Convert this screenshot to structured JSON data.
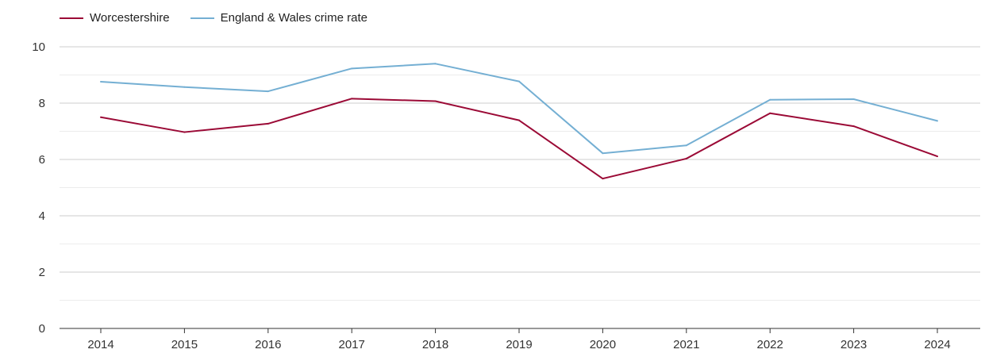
{
  "chart_data": {
    "type": "line",
    "x": [
      "2014",
      "2015",
      "2016",
      "2017",
      "2018",
      "2019",
      "2020",
      "2021",
      "2022",
      "2023",
      "2024"
    ],
    "series": [
      {
        "name": "Worcestershire",
        "color": "#9b0a36",
        "values": [
          7.5,
          6.97,
          7.27,
          8.16,
          8.07,
          7.39,
          5.32,
          6.03,
          7.64,
          7.18,
          6.11
        ]
      },
      {
        "name": "England & Wales crime rate",
        "color": "#74afd3",
        "values": [
          8.76,
          8.57,
          8.42,
          9.23,
          9.4,
          8.77,
          6.22,
          6.5,
          8.12,
          8.14,
          7.37
        ]
      }
    ],
    "ylim": [
      0,
      10
    ],
    "yticks": [
      "0",
      "2",
      "4",
      "6",
      "8",
      "10"
    ],
    "grid": true,
    "legend": "top-left"
  }
}
